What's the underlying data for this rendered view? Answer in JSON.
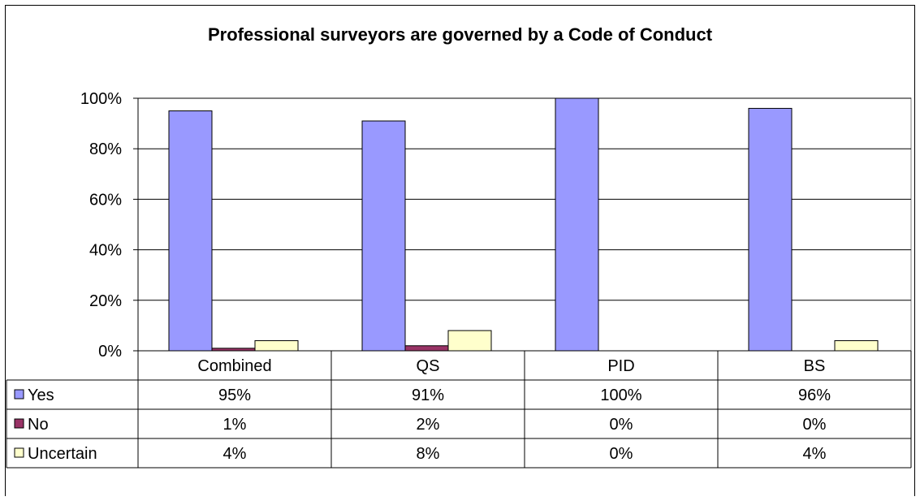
{
  "chart_data": {
    "type": "bar",
    "title": "Professional surveyors are governed by a Code of Conduct",
    "categories": [
      "Combined",
      "QS",
      "PID",
      "BS"
    ],
    "series": [
      {
        "name": "Yes",
        "values": [
          95,
          91,
          100,
          96
        ],
        "labels": [
          "95%",
          "91%",
          "100%",
          "96%"
        ],
        "color": "#9999FF"
      },
      {
        "name": "No",
        "values": [
          1,
          2,
          0,
          0
        ],
        "labels": [
          "1%",
          "2%",
          "0%",
          "0%"
        ],
        "color": "#993366"
      },
      {
        "name": "Uncertain",
        "values": [
          4,
          8,
          0,
          4
        ],
        "labels": [
          "4%",
          "8%",
          "0%",
          "4%"
        ],
        "color": "#FFFFCC"
      }
    ],
    "ylim": [
      0,
      100
    ],
    "yticks": [
      "0%",
      "20%",
      "40%",
      "60%",
      "80%",
      "100%"
    ],
    "grid": true,
    "legend": "data-table"
  }
}
